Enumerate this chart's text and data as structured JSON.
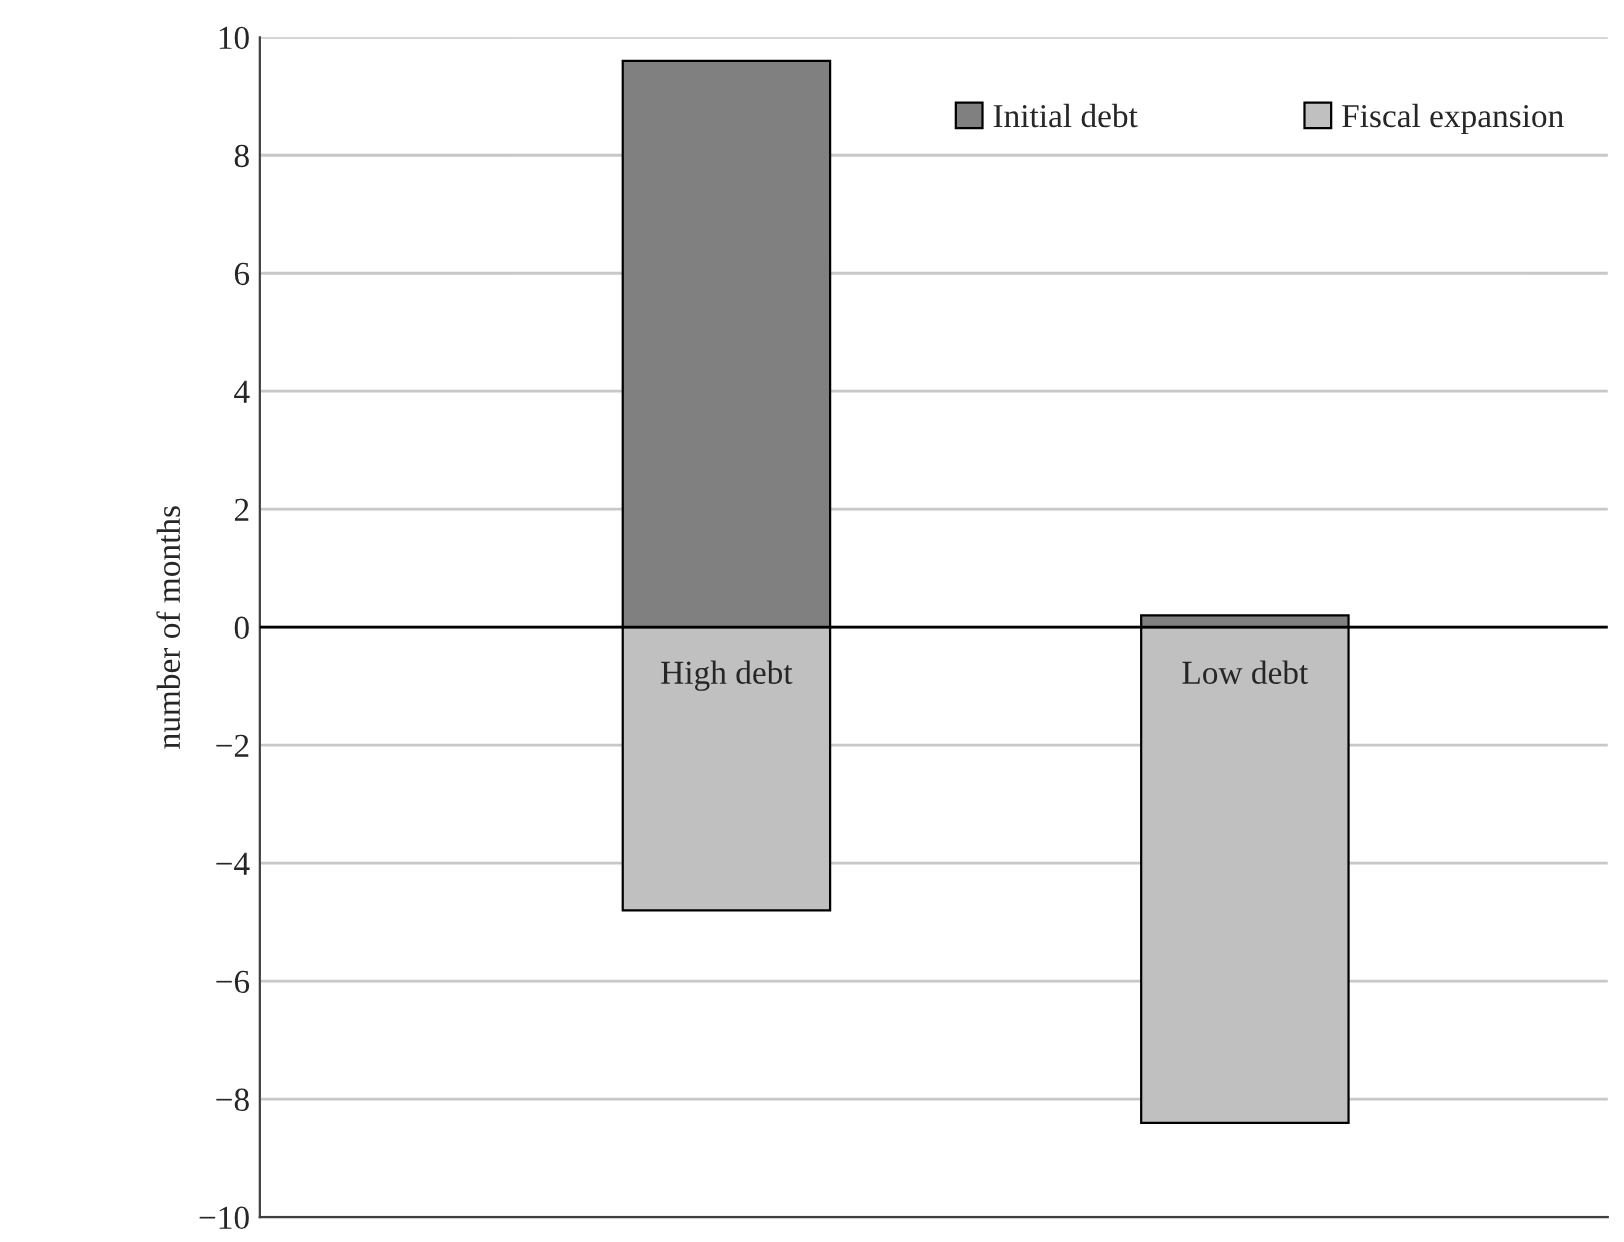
{
  "chart_data": {
    "type": "bar",
    "ylabel": "number of months",
    "categories": [
      "High debt",
      "Low debt"
    ],
    "series": [
      {
        "name": "Initial debt",
        "color": "#808080",
        "values": [
          9.6,
          0.2
        ]
      },
      {
        "name": "Fiscal expansion",
        "color": "#c0c0c0",
        "values": [
          -4.8,
          -8.4
        ]
      }
    ],
    "stacked": true,
    "ylim": [
      -10,
      10
    ],
    "yticks": [
      {
        "value": -10,
        "label": "−10"
      },
      {
        "value": -8,
        "label": "−8"
      },
      {
        "value": -6,
        "label": "−6"
      },
      {
        "value": -4,
        "label": "−4"
      },
      {
        "value": -2,
        "label": "−2"
      },
      0,
      2,
      4,
      6,
      8,
      10
    ],
    "grid": "y",
    "legend": "top right"
  }
}
